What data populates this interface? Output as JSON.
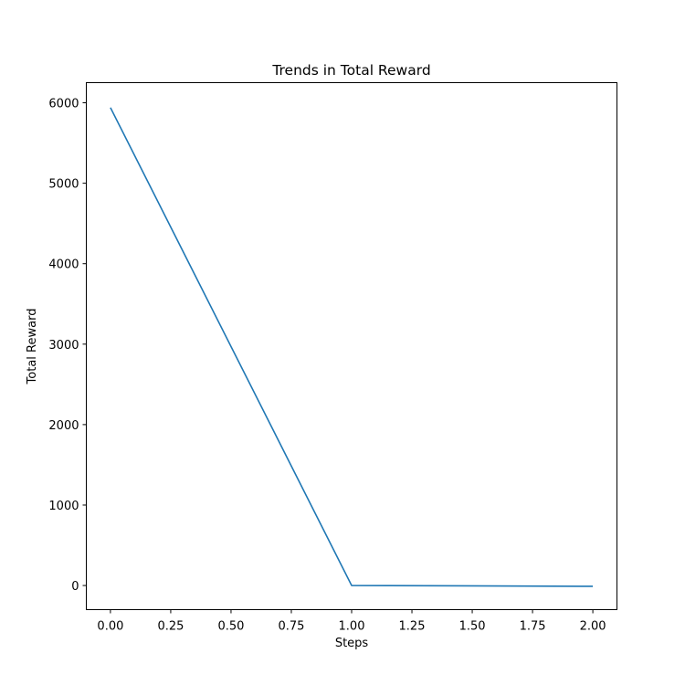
{
  "chart_data": {
    "type": "line",
    "title": "Trends in Total Reward",
    "xlabel": "Steps",
    "ylabel": "Total Reward",
    "xlim": [
      -0.1,
      2.1
    ],
    "ylim": [
      -300,
      6250
    ],
    "xticks": [
      0.0,
      0.25,
      0.5,
      0.75,
      1.0,
      1.25,
      1.5,
      1.75,
      2.0
    ],
    "xtick_labels": [
      "0.00",
      "0.25",
      "0.50",
      "0.75",
      "1.00",
      "1.25",
      "1.50",
      "1.75",
      "2.00"
    ],
    "yticks": [
      0,
      1000,
      2000,
      3000,
      4000,
      5000,
      6000
    ],
    "ytick_labels": [
      "0",
      "1000",
      "2000",
      "3000",
      "4000",
      "5000",
      "6000"
    ],
    "grid": false,
    "series": [
      {
        "color": "#1f77b4",
        "x": [
          0,
          1,
          2
        ],
        "y": [
          5940,
          0,
          -10
        ]
      }
    ]
  }
}
